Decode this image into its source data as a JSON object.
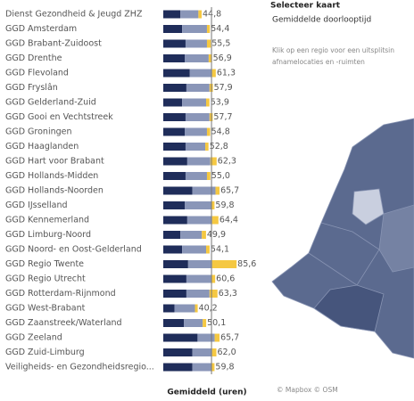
{
  "chart_data": {
    "type": "bar",
    "orientation": "horizontal",
    "stacked": true,
    "xlabel": "Gemiddeld (uren)",
    "categories": [
      "Dienst Gezondheid & Jeugd ZHZ",
      "GGD Amsterdam",
      "GGD Brabant-Zuidoost",
      "GGD Drenthe",
      "GGD Flevoland",
      "GGD Fryslân",
      "GGD Gelderland-Zuid",
      "GGD Gooi en Vechtstreek",
      "GGD Groningen",
      "GGD Haaglanden",
      "GGD Hart voor Brabant",
      "GGD Hollands-Midden",
      "GGD Hollands-Noorden",
      "GGD IJsselland",
      "GGD Kennemerland",
      "GGD Limburg-Noord",
      "GGD Noord- en Oost-Gelderland",
      "GGD Regio Twente",
      "GGD Regio Utrecht",
      "GGD Rotterdam-Rijnmond",
      "GGD West-Brabant",
      "GGD Zaanstreek/Waterland",
      "GGD Zeeland",
      "GGD Zuid-Limburg",
      "Veiligheids- en Gezondheidsregio..."
    ],
    "series": [
      {
        "color": "#1f2d5a",
        "values": [
          20,
          22,
          26,
          25,
          31,
          27,
          22,
          26,
          25,
          26,
          28,
          26,
          34,
          25,
          28,
          20,
          22,
          29,
          27,
          27,
          13,
          24,
          40,
          34,
          34
        ]
      },
      {
        "color": "#8a96b8",
        "values": [
          21,
          29,
          25,
          28,
          26,
          27,
          28,
          28,
          26,
          23,
          27,
          25,
          27,
          31,
          29,
          25,
          28,
          28,
          29,
          27,
          24,
          22,
          20,
          23,
          22
        ]
      },
      {
        "color": "#f5c842",
        "values": [
          3.8,
          3.4,
          4.5,
          3.9,
          4.3,
          3.9,
          3.9,
          3.7,
          3.8,
          3.8,
          7.3,
          4.0,
          4.7,
          3.8,
          7.4,
          4.9,
          4.1,
          28.6,
          4.6,
          9.3,
          3.2,
          4.1,
          5.7,
          5.0,
          3.8
        ]
      }
    ],
    "total_labels": [
      "44,8",
      "54,4",
      "55,5",
      "56,9",
      "61,3",
      "57,9",
      "53,9",
      "57,7",
      "54,8",
      "52,8",
      "62,3",
      "55,0",
      "65,7",
      "59,8",
      "64,4",
      "49,9",
      "54,1",
      "85,6",
      "60,6",
      "63,3",
      "40,2",
      "50,1",
      "65,7",
      "62,0",
      "59,8"
    ],
    "reference_value": 56.3,
    "xlim": [
      0,
      100
    ]
  },
  "panel": {
    "title": "Selecteer kaart",
    "subtitle": "Gemiddelde doorlooptijd",
    "hint_line1": "Klik op een regio voor een uitsplitsin",
    "hint_line2": "afnamelocaties en -ruimten",
    "credit": "© Mapbox © OSM"
  }
}
